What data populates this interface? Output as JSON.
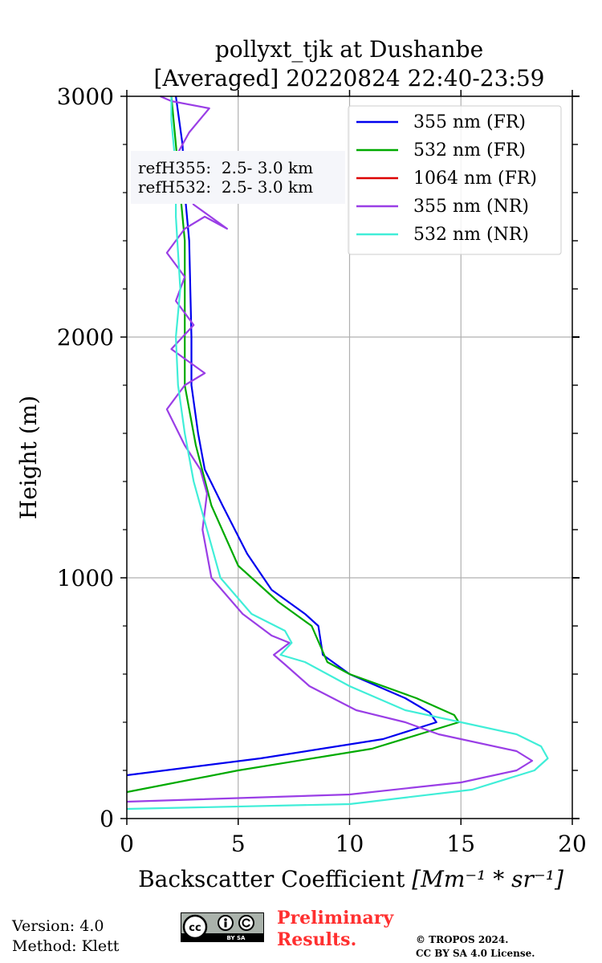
{
  "chart_data": {
    "type": "line",
    "title_line1": "pollyxt_tjk at Dushanbe",
    "title_line2": "[Averaged] 20220824 22:40-23:59",
    "xlabel_text": "Backscatter Coefficient ",
    "xlabel_unit": "[Mm⁻¹ * sr⁻¹]",
    "ylabel": "Height (m)",
    "xlim": [
      0,
      20
    ],
    "ylim": [
      0,
      3000
    ],
    "xticks": [
      0,
      5,
      10,
      15,
      20
    ],
    "yticks": [
      0,
      1000,
      2000,
      3000
    ],
    "grid": true,
    "legend_position": "top-right",
    "annotation": [
      "refH355:  2.5- 3.0 km",
      "refH532:  2.5- 3.0 km"
    ],
    "series": [
      {
        "name": "355 nm (FR)",
        "color": "#0000ee",
        "x": [
          0,
          6,
          11.5,
          13.9,
          13.6,
          12.5,
          10,
          8.8,
          8.6,
          8.0,
          6.5,
          5.4,
          4.3,
          3.5,
          3.2,
          2.9,
          2.9,
          2.8,
          2.6,
          2.5,
          2.2
        ],
        "y": [
          180,
          250,
          330,
          400,
          440,
          500,
          600,
          680,
          800,
          850,
          950,
          1100,
          1300,
          1450,
          1600,
          1800,
          2000,
          2400,
          2600,
          2800,
          3000
        ]
      },
      {
        "name": "532 nm (FR)",
        "color": "#00aa00",
        "x": [
          0,
          5,
          11,
          14.9,
          14.7,
          13,
          10,
          9,
          8.3,
          6.8,
          5,
          3.8,
          3.1,
          2.8,
          2.6,
          2.6,
          2.6,
          2.4,
          2.2,
          2.0
        ],
        "y": [
          110,
          200,
          290,
          400,
          430,
          500,
          600,
          650,
          800,
          900,
          1050,
          1300,
          1550,
          1700,
          1800,
          2000,
          2400,
          2600,
          2800,
          3000
        ]
      },
      {
        "name": "1064 nm (FR)",
        "color": "#dd0000",
        "x": [],
        "y": []
      },
      {
        "name": "355 nm (NR)",
        "color": "#9a3ee6",
        "x": [
          0,
          10,
          15,
          17.5,
          18.2,
          17.5,
          14,
          12.5,
          10.3,
          8.2,
          7.1,
          6.6,
          7.3,
          6.5,
          5.2,
          3.8,
          3.4,
          3.6,
          3.3,
          2.6,
          1.8,
          2.6,
          3.5,
          2.0,
          3.0,
          2.2,
          2.6,
          1.8,
          2.6,
          3.5,
          4.5,
          3.0,
          2.4,
          2.2,
          2.8,
          3.7,
          2.0,
          1.5
        ],
        "y": [
          70,
          100,
          150,
          200,
          240,
          280,
          350,
          400,
          450,
          550,
          640,
          680,
          730,
          760,
          850,
          1000,
          1200,
          1350,
          1450,
          1550,
          1700,
          1800,
          1850,
          1950,
          2050,
          2150,
          2250,
          2350,
          2450,
          2500,
          2450,
          2550,
          2650,
          2750,
          2850,
          2950,
          2980,
          3000
        ]
      },
      {
        "name": "532 nm (NR)",
        "color": "#40eed8",
        "x": [
          0,
          10,
          15.5,
          18.3,
          18.9,
          18.6,
          17.5,
          15,
          12.5,
          10,
          8,
          6.9,
          7.4,
          7.1,
          5.6,
          4.2,
          3.6,
          3.0,
          2.6,
          2.3,
          2.2,
          2.4,
          2.2,
          2.2,
          2.0,
          2.0
        ],
        "y": [
          40,
          60,
          120,
          200,
          250,
          300,
          350,
          400,
          450,
          550,
          650,
          680,
          730,
          780,
          850,
          1000,
          1200,
          1400,
          1600,
          1800,
          2000,
          2200,
          2500,
          2700,
          2900,
          3000
        ]
      }
    ]
  },
  "footer": {
    "version": "Version: 4.0",
    "method": "Method: Klett",
    "preliminary_line1": "Preliminary",
    "preliminary_line2": "Results.",
    "copyright_line1": "© TROPOS 2024.",
    "copyright_line2": "CC BY SA 4.0 License.",
    "license_badge_label": "BY SA",
    "license_badge_icon": "cc-by-sa-icon"
  }
}
